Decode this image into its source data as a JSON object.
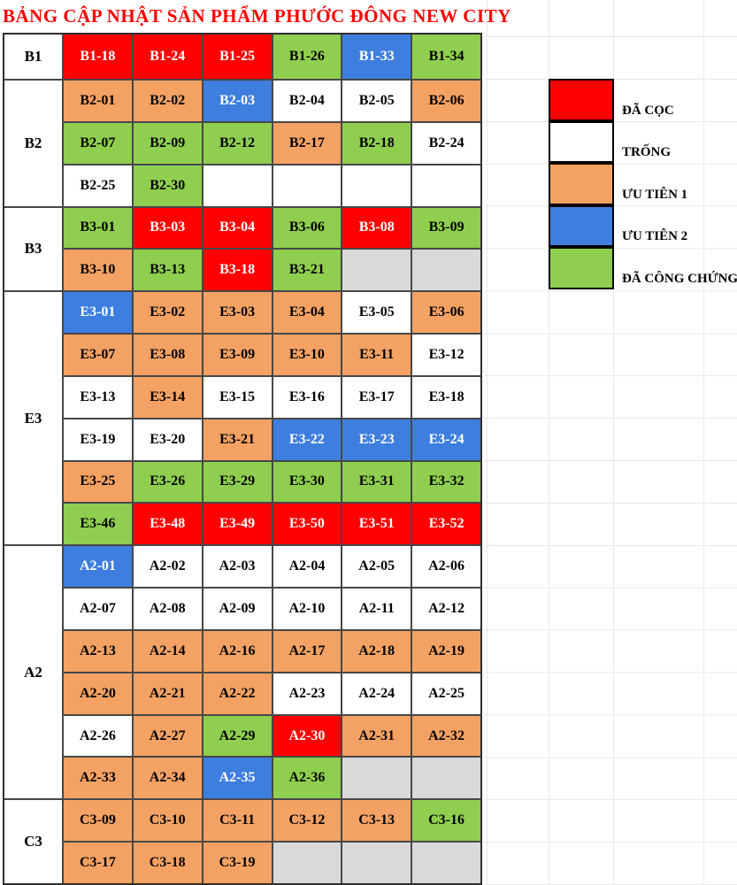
{
  "title": "BẢNG CẬP NHẬT SẢN PHẨM PHƯỚC ĐÔNG NEW CITY",
  "colors": {
    "deposited": "#FE0100",
    "empty": "#FFFFFF",
    "priority1": "#F4A264",
    "priority2": "#3E7EDE",
    "notarized": "#8FCE4F",
    "unused": "#D9D9D9",
    "title_text": "#FF0000",
    "table_border": "#474747",
    "gridline": "#E9E9E9"
  },
  "legend": [
    {
      "status": "deposited",
      "label": "ĐÃ CỌC"
    },
    {
      "status": "empty",
      "label": "TRỐNG"
    },
    {
      "status": "priority1",
      "label": "ƯU TIÊN 1"
    },
    {
      "status": "priority2",
      "label": "ƯU TIÊN 2"
    },
    {
      "status": "notarized",
      "label": "ĐÃ CÔNG CHỨNG"
    }
  ],
  "sections": [
    {
      "name": "B1",
      "rows": [
        [
          {
            "label": "B1-18",
            "status": "deposited"
          },
          {
            "label": "B1-24",
            "status": "deposited"
          },
          {
            "label": "B1-25",
            "status": "deposited"
          },
          {
            "label": "B1-26",
            "status": "notarized"
          },
          {
            "label": "B1-33",
            "status": "priority2"
          },
          {
            "label": "B1-34",
            "status": "notarized"
          }
        ]
      ]
    },
    {
      "name": "B2",
      "rows": [
        [
          {
            "label": "B2-01",
            "status": "priority1"
          },
          {
            "label": "B2-02",
            "status": "priority1"
          },
          {
            "label": "B2-03",
            "status": "priority2"
          },
          {
            "label": "B2-04",
            "status": "empty"
          },
          {
            "label": "B2-05",
            "status": "empty"
          },
          {
            "label": "B2-06",
            "status": "priority1"
          }
        ],
        [
          {
            "label": "B2-07",
            "status": "notarized"
          },
          {
            "label": "B2-09",
            "status": "notarized"
          },
          {
            "label": "B2-12",
            "status": "notarized"
          },
          {
            "label": "B2-17",
            "status": "priority1"
          },
          {
            "label": "B2-18",
            "status": "notarized"
          },
          {
            "label": "B2-24",
            "status": "empty"
          }
        ],
        [
          {
            "label": "B2-25",
            "status": "empty"
          },
          {
            "label": "B2-30",
            "status": "notarized"
          },
          {
            "label": "",
            "status": "empty"
          },
          {
            "label": "",
            "status": "empty"
          },
          {
            "label": "",
            "status": "empty"
          },
          {
            "label": "",
            "status": "empty"
          }
        ]
      ]
    },
    {
      "name": "B3",
      "rows": [
        [
          {
            "label": "B3-01",
            "status": "notarized"
          },
          {
            "label": "B3-03",
            "status": "deposited"
          },
          {
            "label": "B3-04",
            "status": "deposited"
          },
          {
            "label": "B3-06",
            "status": "notarized"
          },
          {
            "label": "B3-08",
            "status": "deposited"
          },
          {
            "label": "B3-09",
            "status": "notarized"
          }
        ],
        [
          {
            "label": "B3-10",
            "status": "priority1"
          },
          {
            "label": "B3-13",
            "status": "notarized"
          },
          {
            "label": "B3-18",
            "status": "deposited"
          },
          {
            "label": "B3-21",
            "status": "notarized"
          },
          {
            "label": "",
            "status": "na"
          },
          {
            "label": "",
            "status": "na"
          }
        ]
      ]
    },
    {
      "name": "E3",
      "rows": [
        [
          {
            "label": "E3-01",
            "status": "priority2"
          },
          {
            "label": "E3-02",
            "status": "priority1"
          },
          {
            "label": "E3-03",
            "status": "priority1"
          },
          {
            "label": "E3-04",
            "status": "priority1"
          },
          {
            "label": "E3-05",
            "status": "empty"
          },
          {
            "label": "E3-06",
            "status": "priority1"
          }
        ],
        [
          {
            "label": "E3-07",
            "status": "priority1"
          },
          {
            "label": "E3-08",
            "status": "priority1"
          },
          {
            "label": "E3-09",
            "status": "priority1"
          },
          {
            "label": "E3-10",
            "status": "priority1"
          },
          {
            "label": "E3-11",
            "status": "priority1"
          },
          {
            "label": "E3-12",
            "status": "empty"
          }
        ],
        [
          {
            "label": "E3-13",
            "status": "empty"
          },
          {
            "label": "E3-14",
            "status": "priority1"
          },
          {
            "label": "E3-15",
            "status": "empty"
          },
          {
            "label": "E3-16",
            "status": "empty"
          },
          {
            "label": "E3-17",
            "status": "empty"
          },
          {
            "label": "E3-18",
            "status": "empty"
          }
        ],
        [
          {
            "label": "E3-19",
            "status": "empty"
          },
          {
            "label": "E3-20",
            "status": "empty"
          },
          {
            "label": "E3-21",
            "status": "priority1"
          },
          {
            "label": "E3-22",
            "status": "priority2"
          },
          {
            "label": "E3-23",
            "status": "priority2"
          },
          {
            "label": "E3-24",
            "status": "priority2"
          }
        ],
        [
          {
            "label": "E3-25",
            "status": "priority1"
          },
          {
            "label": "E3-26",
            "status": "notarized"
          },
          {
            "label": "E3-29",
            "status": "notarized"
          },
          {
            "label": "E3-30",
            "status": "notarized"
          },
          {
            "label": "E3-31",
            "status": "notarized"
          },
          {
            "label": "E3-32",
            "status": "notarized"
          }
        ],
        [
          {
            "label": "E3-46",
            "status": "notarized"
          },
          {
            "label": "E3-48",
            "status": "deposited"
          },
          {
            "label": "E3-49",
            "status": "deposited"
          },
          {
            "label": "E3-50",
            "status": "deposited"
          },
          {
            "label": "E3-51",
            "status": "deposited"
          },
          {
            "label": "E3-52",
            "status": "deposited"
          }
        ]
      ]
    },
    {
      "name": "A2",
      "rows": [
        [
          {
            "label": "A2-01",
            "status": "priority2"
          },
          {
            "label": "A2-02",
            "status": "empty"
          },
          {
            "label": "A2-03",
            "status": "empty"
          },
          {
            "label": "A2-04",
            "status": "empty"
          },
          {
            "label": "A2-05",
            "status": "empty"
          },
          {
            "label": "A2-06",
            "status": "empty"
          }
        ],
        [
          {
            "label": "A2-07",
            "status": "empty"
          },
          {
            "label": "A2-08",
            "status": "empty"
          },
          {
            "label": "A2-09",
            "status": "empty"
          },
          {
            "label": "A2-10",
            "status": "empty"
          },
          {
            "label": "A2-11",
            "status": "empty"
          },
          {
            "label": "A2-12",
            "status": "empty"
          }
        ],
        [
          {
            "label": "A2-13",
            "status": "priority1"
          },
          {
            "label": "A2-14",
            "status": "priority1"
          },
          {
            "label": "A2-16",
            "status": "priority1"
          },
          {
            "label": "A2-17",
            "status": "priority1"
          },
          {
            "label": "A2-18",
            "status": "priority1"
          },
          {
            "label": "A2-19",
            "status": "priority1"
          }
        ],
        [
          {
            "label": "A2-20",
            "status": "priority1"
          },
          {
            "label": "A2-21",
            "status": "priority1"
          },
          {
            "label": "A2-22",
            "status": "priority1"
          },
          {
            "label": "A2-23",
            "status": "empty"
          },
          {
            "label": "A2-24",
            "status": "empty"
          },
          {
            "label": "A2-25",
            "status": "empty"
          }
        ],
        [
          {
            "label": "A2-26",
            "status": "empty"
          },
          {
            "label": "A2-27",
            "status": "priority1"
          },
          {
            "label": "A2-29",
            "status": "notarized"
          },
          {
            "label": "A2-30",
            "status": "deposited"
          },
          {
            "label": "A2-31",
            "status": "priority1"
          },
          {
            "label": "A2-32",
            "status": "priority1"
          }
        ],
        [
          {
            "label": "A2-33",
            "status": "priority1"
          },
          {
            "label": "A2-34",
            "status": "priority1"
          },
          {
            "label": "A2-35",
            "status": "priority2"
          },
          {
            "label": "A2-36",
            "status": "notarized"
          },
          {
            "label": "",
            "status": "na"
          },
          {
            "label": "",
            "status": "na"
          }
        ]
      ]
    },
    {
      "name": "C3",
      "rows": [
        [
          {
            "label": "C3-09",
            "status": "priority1"
          },
          {
            "label": "C3-10",
            "status": "priority1"
          },
          {
            "label": "C3-11",
            "status": "priority1"
          },
          {
            "label": "C3-12",
            "status": "priority1"
          },
          {
            "label": "C3-13",
            "status": "priority1"
          },
          {
            "label": "C3-16",
            "status": "notarized"
          }
        ],
        [
          {
            "label": "C3-17",
            "status": "priority1"
          },
          {
            "label": "C3-18",
            "status": "priority1"
          },
          {
            "label": "C3-19",
            "status": "priority1"
          },
          {
            "label": "",
            "status": "na"
          },
          {
            "label": "",
            "status": "na"
          },
          {
            "label": "",
            "status": "na"
          }
        ]
      ]
    }
  ]
}
